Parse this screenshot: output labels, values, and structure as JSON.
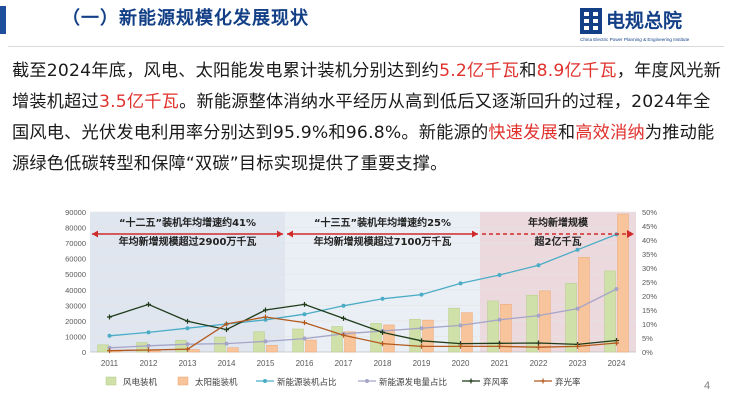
{
  "slide": {
    "title": "（一）新能源规模化发展现状",
    "page_number": "4",
    "logo": {
      "cn": "电规总院",
      "en": "China Electric Power Planning & Engineering Institute"
    }
  },
  "paragraph": {
    "p1": "截至2024年底，风电、太阳能发电累计装机分别达到约",
    "v1": "5.2亿千瓦",
    "p2": "和",
    "v2": "8.9亿千瓦",
    "p3": "，年度风光新增装机超过",
    "v3": "3.5亿千瓦",
    "p4": "。新能源整体消纳水平经历从高到低后又逐渐回升的过程，2024年全国风电、光伏发电利用率分别达到95.9%和96.8%。新能源的",
    "v4": "快速发展",
    "p5": "和",
    "v5": "高效消纳",
    "p6": "为推动能源绿色低碳转型和保障“双碳”目标实现提供了重要支撑。"
  },
  "colors": {
    "title": "#123f86",
    "highlight": "#e0312d",
    "wind_bar": "#cfe0a8",
    "solar_bar": "#f7c49b",
    "share_install": "#4bacc6",
    "share_gen": "#a5a5c8",
    "curtail_wind": "#1f3b1a",
    "curtail_solar": "#b35a1f",
    "period_fill": "#dfe6f0",
    "period3_fill": "#ecd9de",
    "arrow": "#d02b2b"
  },
  "chart_data": {
    "type": "bar",
    "categories": [
      "2011",
      "2012",
      "2013",
      "2014",
      "2015",
      "2016",
      "2017",
      "2018",
      "2019",
      "2020",
      "2021",
      "2022",
      "2023",
      "2024"
    ],
    "y_left": {
      "ticks": [
        "0",
        "10000",
        "20000",
        "30000",
        "40000",
        "50000",
        "60000",
        "70000",
        "80000",
        "90000"
      ],
      "ylim": [
        0,
        90000
      ]
    },
    "y_right": {
      "ticks": [
        "0%",
        "5%",
        "10%",
        "15%",
        "20%",
        "25%",
        "30%",
        "35%",
        "40%",
        "45%",
        "50%"
      ],
      "ylim": [
        0,
        50
      ]
    },
    "series": [
      {
        "name": "风电装机",
        "kind": "bar",
        "axis": "left",
        "values": [
          4600,
          6100,
          7500,
          9600,
          13000,
          14800,
          16400,
          18400,
          21000,
          28200,
          32800,
          36500,
          44100,
          52100
        ]
      },
      {
        "name": "太阳能装机",
        "kind": "bar",
        "axis": "left",
        "values": [
          300,
          700,
          1600,
          2800,
          4300,
          7700,
          13000,
          17400,
          20500,
          25300,
          30700,
          39300,
          60900,
          88700
        ]
      },
      {
        "name": "新能源装机占比",
        "kind": "line",
        "axis": "right",
        "values": [
          5.8,
          7.0,
          8.5,
          10.0,
          11.5,
          13.5,
          16.5,
          19.0,
          20.5,
          24.5,
          27.5,
          31.0,
          36.5,
          42.0
        ]
      },
      {
        "name": "新能源发电量占比",
        "kind": "line",
        "axis": "right",
        "values": [
          1.5,
          2.2,
          2.8,
          3.0,
          3.8,
          4.8,
          6.5,
          7.5,
          8.5,
          9.5,
          11.5,
          13.0,
          15.5,
          22.5
        ]
      },
      {
        "name": "弃风率",
        "kind": "line",
        "axis": "right",
        "values": [
          12.5,
          17.0,
          11.0,
          8.0,
          15.0,
          17.0,
          12.0,
          7.0,
          4.0,
          3.0,
          3.1,
          3.2,
          2.7,
          4.1
        ]
      },
      {
        "name": "弃光率",
        "kind": "line",
        "axis": "right",
        "values": [
          0.5,
          0.7,
          1.0,
          10.0,
          12.5,
          10.5,
          6.0,
          3.0,
          2.0,
          2.0,
          2.0,
          1.7,
          2.0,
          3.2
        ]
      }
    ],
    "periods": [
      {
        "title": "“十二五”装机年均增速约41%",
        "subtitle": "年均新增规模超过2900万千瓦"
      },
      {
        "title": "“十三五”装机年均增速约25%",
        "subtitle": "年均新增规模超过7100万千瓦"
      },
      {
        "title": "年均新增规模",
        "subtitle": "超2亿千瓦"
      }
    ],
    "legend_position": "bottom"
  }
}
